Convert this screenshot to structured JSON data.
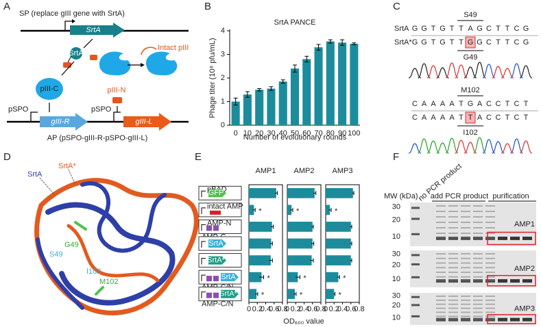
{
  "panel_labels": [
    "A",
    "B",
    "C",
    "D",
    "E",
    "F"
  ],
  "panel_a": {
    "sp_label": "SP (replace gIII gene with SrtA)",
    "srta_gene": "SrtA",
    "srta_protein": "SrtA",
    "intact_piii": "Intact pIII",
    "piii_c": "pIII-C",
    "piii_n": "pIII-N",
    "promoters": [
      "pSPO",
      "pSPO"
    ],
    "giii_r": "gIII-R",
    "giii_l": "gIII-L",
    "ap_label": "AP (pSPO-gIII-R-pSPO-gIII-L)"
  },
  "panel_c": {
    "blocks": [
      {
        "residue_top": "S49",
        "residue_bottom": "G49",
        "rows": [
          {
            "label": "SrtA",
            "sequence": [
              "G",
              "G",
              "T",
              "G",
              "T",
              "T",
              "A",
              "G",
              "C",
              "T",
              "T",
              "C",
              "G"
            ]
          },
          {
            "label": "SrtA*",
            "sequence": [
              "G",
              "G",
              "T",
              "G",
              "T",
              "T",
              "G",
              "G",
              "C",
              "T",
              "T",
              "C",
              "G"
            ]
          }
        ]
      },
      {
        "residue_top": "M102",
        "residue_bottom": "I102",
        "rows": [
          {
            "sequence": [
              "C",
              "A",
              "A",
              "A",
              "A",
              "T",
              "G",
              "A",
              "C",
              "C",
              "T",
              "C",
              "T"
            ]
          },
          {
            "sequence": [
              "C",
              "A",
              "A",
              "A",
              "A",
              "T",
              "T",
              "A",
              "C",
              "C",
              "T",
              "C",
              "T"
            ]
          }
        ]
      }
    ]
  },
  "panel_d": {
    "srta": "SrtA",
    "srta_star": "SrtA*",
    "g49": "G49",
    "s49": "S49",
    "i102": "I102",
    "m102": "M102"
  },
  "panel_e": {
    "constructs": [
      {
        "top": "pBAD",
        "box": "GFP"
      },
      {
        "top": "intact AMP"
      },
      {
        "top": "AMP-N",
        "bottom": "AMP-C"
      },
      {
        "box": "SrtA"
      },
      {
        "box": "SrtA*"
      },
      {
        "box": "SrtA",
        "bottom": "AMP-C/N"
      },
      {
        "box": "SrtA*",
        "bottom": "AMP-C/N"
      }
    ],
    "xlabel": "OD₆₀₀ value"
  },
  "panel_f": {
    "mw_label": "MW (kDa)",
    "lane_groups": [
      "no PCR product",
      "add PCR product",
      "purification"
    ],
    "gels": [
      {
        "name": "AMP1",
        "mw": [
          "30",
          "20",
          "10"
        ]
      },
      {
        "name": "AMP2",
        "mw": [
          "30",
          "20",
          "10"
        ]
      },
      {
        "name": "AMP3",
        "mw": [
          "30",
          "20",
          "10"
        ]
      }
    ]
  },
  "chart_data": [
    {
      "type": "bar",
      "title": "SrtA PANCE",
      "xlabel": "Number of evolutionary rounds",
      "ylabel": "Phage titer (10⁸ pfu/mL)",
      "categories": [
        "0",
        "10",
        "20",
        "30",
        "40",
        "50",
        "60",
        "70",
        "80",
        "90",
        "100"
      ],
      "values": [
        1.0,
        1.3,
        1.5,
        1.55,
        1.85,
        2.4,
        2.8,
        3.3,
        3.55,
        3.5,
        3.45
      ],
      "errors": [
        0.15,
        0.12,
        0.05,
        0.08,
        0.07,
        0.15,
        0.12,
        0.12,
        0.07,
        0.12,
        0.04
      ],
      "color": "#1c8c9c",
      "ylim": [
        0,
        4
      ],
      "yticks": [
        0,
        1,
        2,
        3,
        4
      ]
    },
    {
      "type": "hbar",
      "title": "AMP1",
      "values": [
        0.65,
        0.12,
        0.55,
        0.53,
        0.52,
        0.3,
        0.18
      ],
      "errors": [
        0.03,
        0.03,
        0.03,
        0.03,
        0.04,
        0.05,
        0.03
      ],
      "markers": [
        null,
        "*",
        null,
        null,
        null,
        "*",
        "*"
      ],
      "color": "#1c8c9c",
      "xlim": [
        0,
        0.8
      ],
      "xticks": [
        0,
        0.2,
        0.4,
        0.6,
        0.8
      ]
    },
    {
      "type": "hbar",
      "title": "AMP2",
      "values": [
        0.65,
        0.1,
        0.6,
        0.6,
        0.58,
        0.25,
        0.18
      ],
      "errors": [
        0.03,
        0.03,
        0.02,
        0.03,
        0.04,
        0.05,
        0.03
      ],
      "markers": [
        null,
        "*",
        null,
        null,
        null,
        "*",
        "*"
      ],
      "color": "#1c8c9c",
      "xlim": [
        0,
        0.8
      ],
      "xticks": [
        0,
        0.2,
        0.4,
        0.6,
        0.8
      ]
    },
    {
      "type": "hbar",
      "title": "AMP3",
      "values": [
        0.65,
        0.1,
        0.6,
        0.6,
        0.6,
        0.3,
        0.2
      ],
      "errors": [
        0.02,
        0.03,
        0.02,
        0.02,
        0.02,
        0.03,
        0.02
      ],
      "markers": [
        null,
        "*",
        null,
        null,
        null,
        "*",
        "*"
      ],
      "color": "#1c8c9c",
      "xlim": [
        0,
        0.8
      ],
      "xticks": [
        0,
        0.2,
        0.4,
        0.6,
        0.8
      ]
    }
  ]
}
